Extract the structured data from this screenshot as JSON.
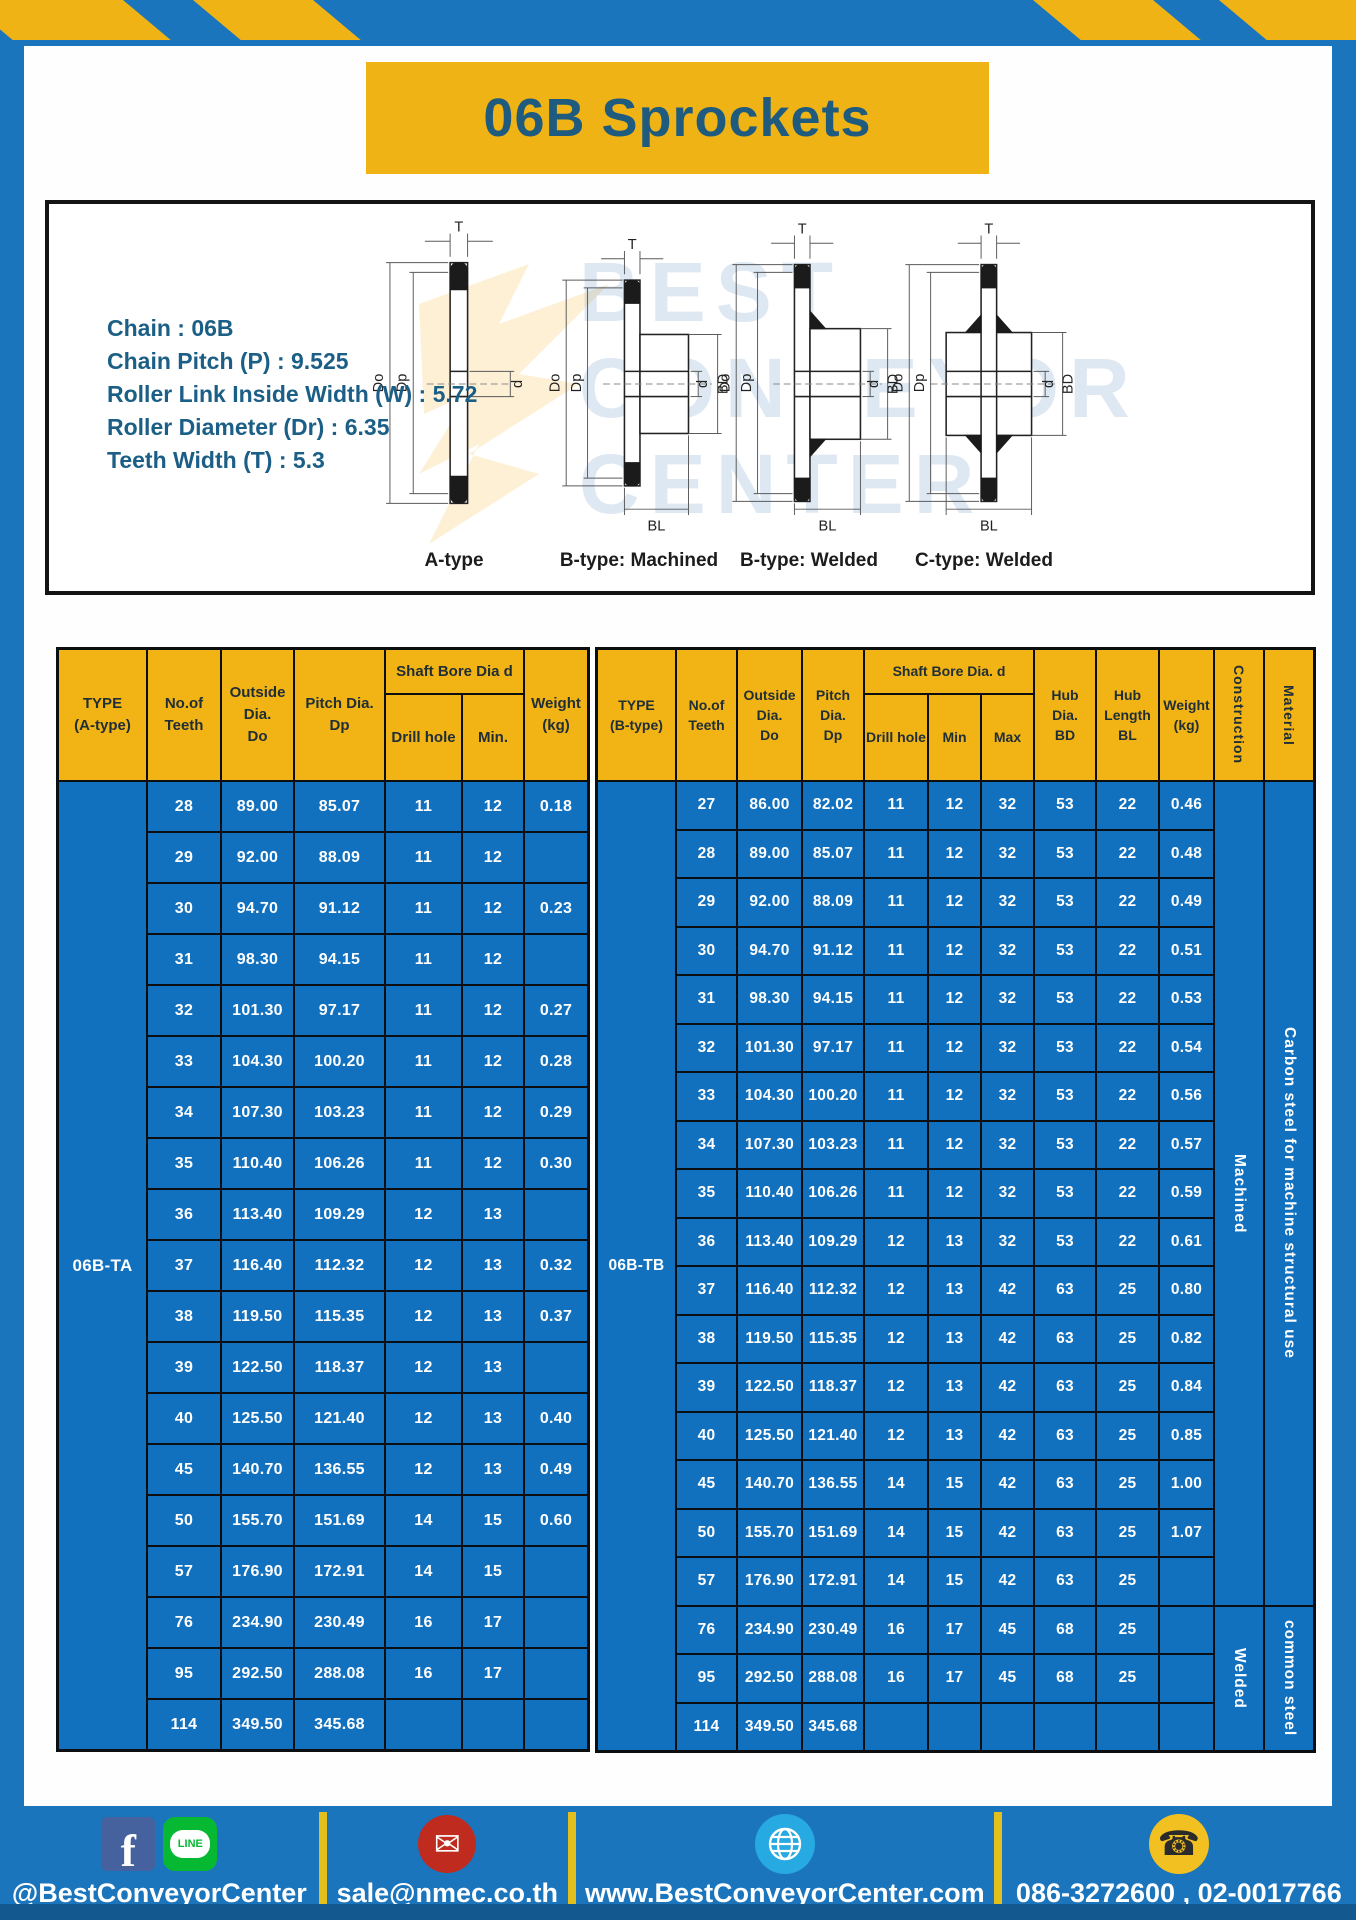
{
  "title": "06B Sprockets",
  "watermark": "BEST CONVEYOR CENTER",
  "specs": [
    "Chain : 06B",
    "Chain Pitch (P) : 9.525",
    "Roller Link Inside Width (W) : 5.72",
    "Roller Diameter (Dr) : 6.35",
    "Teeth Width (T) : 5.3"
  ],
  "diagrams": {
    "captions": [
      "A-type",
      "B-type: Machined",
      "B-type: Welded",
      "C-type: Welded"
    ],
    "dims": {
      "t": "T",
      "do": "Do",
      "dp": "Dp",
      "d": "d",
      "bd": "BD",
      "bl": "BL"
    }
  },
  "table_a": {
    "type_label": "06B-TA",
    "headers": {
      "type": "TYPE\n(A-type)",
      "teeth": "No.of\nTeeth",
      "outside": "Outside\nDia.\nDo",
      "pitch": "Pitch Dia.\nDp",
      "shaft_bore": "Shaft Bore Dia d",
      "drill": "Drill hole",
      "min": "Min.",
      "weight": "Weight\n(kg)"
    },
    "rows": [
      [
        "28",
        "89.00",
        "85.07",
        "11",
        "12",
        "0.18"
      ],
      [
        "29",
        "92.00",
        "88.09",
        "11",
        "12",
        ""
      ],
      [
        "30",
        "94.70",
        "91.12",
        "11",
        "12",
        "0.23"
      ],
      [
        "31",
        "98.30",
        "94.15",
        "11",
        "12",
        ""
      ],
      [
        "32",
        "101.30",
        "97.17",
        "11",
        "12",
        "0.27"
      ],
      [
        "33",
        "104.30",
        "100.20",
        "11",
        "12",
        "0.28"
      ],
      [
        "34",
        "107.30",
        "103.23",
        "11",
        "12",
        "0.29"
      ],
      [
        "35",
        "110.40",
        "106.26",
        "11",
        "12",
        "0.30"
      ],
      [
        "36",
        "113.40",
        "109.29",
        "12",
        "13",
        ""
      ],
      [
        "37",
        "116.40",
        "112.32",
        "12",
        "13",
        "0.32"
      ],
      [
        "38",
        "119.50",
        "115.35",
        "12",
        "13",
        "0.37"
      ],
      [
        "39",
        "122.50",
        "118.37",
        "12",
        "13",
        ""
      ],
      [
        "40",
        "125.50",
        "121.40",
        "12",
        "13",
        "0.40"
      ],
      [
        "45",
        "140.70",
        "136.55",
        "12",
        "13",
        "0.49"
      ],
      [
        "50",
        "155.70",
        "151.69",
        "14",
        "15",
        "0.60"
      ],
      [
        "57",
        "176.90",
        "172.91",
        "14",
        "15",
        ""
      ],
      [
        "76",
        "234.90",
        "230.49",
        "16",
        "17",
        ""
      ],
      [
        "95",
        "292.50",
        "288.08",
        "16",
        "17",
        ""
      ],
      [
        "114",
        "349.50",
        "345.68",
        "",
        "",
        ""
      ]
    ]
  },
  "table_b": {
    "type_label": "06B-TB",
    "headers": {
      "type": "TYPE\n(B-type)",
      "teeth": "No.of\nTeeth",
      "outside": "Outside\nDia.\nDo",
      "pitch": "Pitch\nDia.\nDp",
      "shaft_bore": "Shaft Bore Dia. d",
      "drill": "Drill hole",
      "min": "Min",
      "max": "Max",
      "hub_dia": "Hub\nDia.\nBD",
      "hub_len": "Hub\nLength\nBL",
      "weight": "Weight\n(kg)",
      "construction": "Construction",
      "material": "Material"
    },
    "construction_groups": [
      {
        "label": "Machined",
        "span": 17
      },
      {
        "label": "Welded",
        "span": 3
      }
    ],
    "material_groups": [
      {
        "label": "Carbon steel for machine structural use",
        "span": 17
      },
      {
        "label": "common steel",
        "span": 3
      }
    ],
    "rows": [
      [
        "27",
        "86.00",
        "82.02",
        "11",
        "12",
        "32",
        "53",
        "22",
        "0.46"
      ],
      [
        "28",
        "89.00",
        "85.07",
        "11",
        "12",
        "32",
        "53",
        "22",
        "0.48"
      ],
      [
        "29",
        "92.00",
        "88.09",
        "11",
        "12",
        "32",
        "53",
        "22",
        "0.49"
      ],
      [
        "30",
        "94.70",
        "91.12",
        "11",
        "12",
        "32",
        "53",
        "22",
        "0.51"
      ],
      [
        "31",
        "98.30",
        "94.15",
        "11",
        "12",
        "32",
        "53",
        "22",
        "0.53"
      ],
      [
        "32",
        "101.30",
        "97.17",
        "11",
        "12",
        "32",
        "53",
        "22",
        "0.54"
      ],
      [
        "33",
        "104.30",
        "100.20",
        "11",
        "12",
        "32",
        "53",
        "22",
        "0.56"
      ],
      [
        "34",
        "107.30",
        "103.23",
        "11",
        "12",
        "32",
        "53",
        "22",
        "0.57"
      ],
      [
        "35",
        "110.40",
        "106.26",
        "11",
        "12",
        "32",
        "53",
        "22",
        "0.59"
      ],
      [
        "36",
        "113.40",
        "109.29",
        "12",
        "13",
        "32",
        "53",
        "22",
        "0.61"
      ],
      [
        "37",
        "116.40",
        "112.32",
        "12",
        "13",
        "42",
        "63",
        "25",
        "0.80"
      ],
      [
        "38",
        "119.50",
        "115.35",
        "12",
        "13",
        "42",
        "63",
        "25",
        "0.82"
      ],
      [
        "39",
        "122.50",
        "118.37",
        "12",
        "13",
        "42",
        "63",
        "25",
        "0.84"
      ],
      [
        "40",
        "125.50",
        "121.40",
        "12",
        "13",
        "42",
        "63",
        "25",
        "0.85"
      ],
      [
        "45",
        "140.70",
        "136.55",
        "14",
        "15",
        "42",
        "63",
        "25",
        "1.00"
      ],
      [
        "50",
        "155.70",
        "151.69",
        "14",
        "15",
        "42",
        "63",
        "25",
        "1.07"
      ],
      [
        "57",
        "176.90",
        "172.91",
        "14",
        "15",
        "42",
        "63",
        "25",
        ""
      ],
      [
        "76",
        "234.90",
        "230.49",
        "16",
        "17",
        "45",
        "68",
        "25",
        ""
      ],
      [
        "95",
        "292.50",
        "288.08",
        "16",
        "17",
        "45",
        "68",
        "25",
        ""
      ],
      [
        "114",
        "349.50",
        "345.68",
        "",
        "",
        "",
        "",
        "",
        ""
      ]
    ]
  },
  "footer": {
    "items": [
      {
        "label": "@BestConveyorCenter"
      },
      {
        "label": "sale@nmec.co.th"
      },
      {
        "label": "www.BestConveyorCenter.com"
      },
      {
        "label": "086-3272600 , 02-0017766"
      }
    ],
    "line_badge": "LINE",
    "facebook_letter": "f"
  },
  "colors": {
    "frame_blue": "#1b75bc",
    "cell_blue": "#1271bf",
    "yellow": "#f0b315",
    "title_text": "#1e5b7e"
  }
}
